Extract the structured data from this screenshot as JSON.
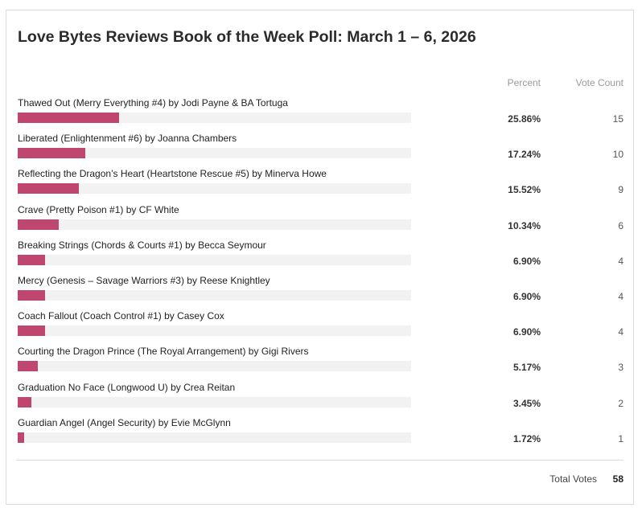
{
  "poll": {
    "title": "Love Bytes Reviews Book of the Week Poll: March 1 – 6, 2026",
    "headers": {
      "percent": "Percent",
      "votes": "Vote Count"
    },
    "accent_color": "#bf466e",
    "track_color": "#f2f2f2",
    "items": [
      {
        "label": "Thawed Out (Merry Everything #4) by Jodi Payne & BA Tortuga",
        "percent": "25.86%",
        "fraction": 0.2586,
        "votes": "15"
      },
      {
        "label": "Liberated (Enlightenment #6) by Joanna Chambers",
        "percent": "17.24%",
        "fraction": 0.1724,
        "votes": "10"
      },
      {
        "label": "Reflecting the Dragon’s Heart (Heartstone Rescue #5) by Minerva Howe",
        "percent": "15.52%",
        "fraction": 0.1552,
        "votes": "9"
      },
      {
        "label": "Crave (Pretty Poison #1) by CF White",
        "percent": "10.34%",
        "fraction": 0.1034,
        "votes": "6"
      },
      {
        "label": "Breaking Strings (Chords & Courts #1) by Becca Seymour",
        "percent": "6.90%",
        "fraction": 0.069,
        "votes": "4"
      },
      {
        "label": "Mercy (Genesis – Savage Warriors #3) by Reese Knightley",
        "percent": "6.90%",
        "fraction": 0.069,
        "votes": "4"
      },
      {
        "label": "Coach Fallout (Coach Control #1) by Casey Cox",
        "percent": "6.90%",
        "fraction": 0.069,
        "votes": "4"
      },
      {
        "label": "Courting the Dragon Prince (The Royal Arrangement) by Gigi Rivers",
        "percent": "5.17%",
        "fraction": 0.0517,
        "votes": "3"
      },
      {
        "label": "Graduation No Face (Longwood U) by Crea Reitan",
        "percent": "3.45%",
        "fraction": 0.0345,
        "votes": "2"
      },
      {
        "label": "Guardian Angel (Angel Security) by Evie McGlynn",
        "percent": "1.72%",
        "fraction": 0.0172,
        "votes": "1"
      }
    ],
    "total_label": "Total Votes",
    "total_value": "58"
  }
}
